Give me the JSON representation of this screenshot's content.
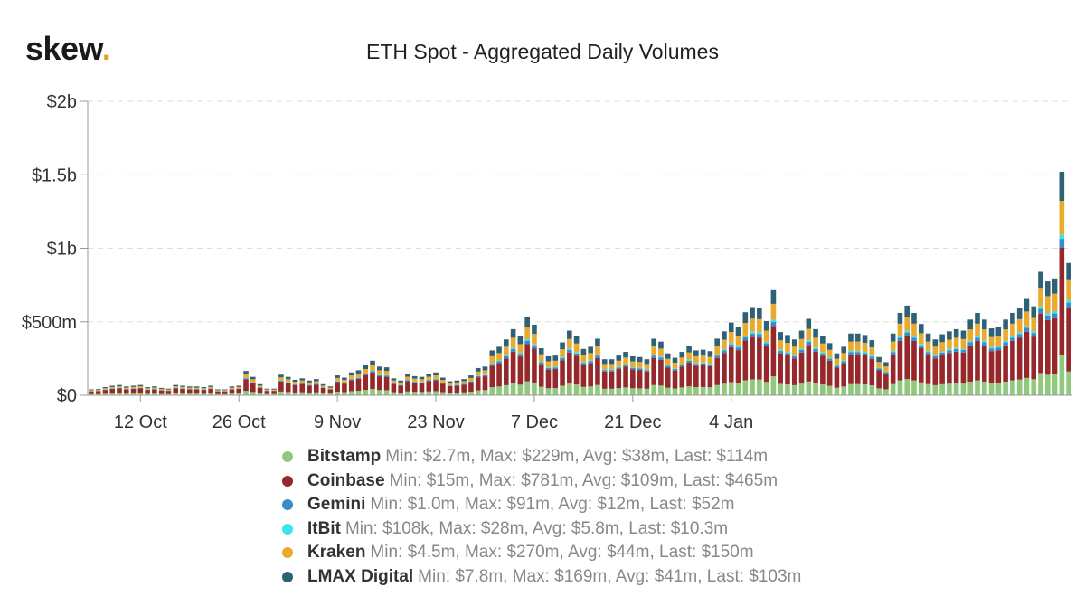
{
  "brand": {
    "name": "skew",
    "dot": "."
  },
  "chart_data": {
    "type": "bar",
    "stacked": true,
    "title": "ETH Spot - Aggregated Daily Volumes",
    "y_ticks": [
      "$0",
      "$500m",
      "$1b",
      "$1.5b",
      "$2b"
    ],
    "y_tick_values": [
      0,
      500,
      1000,
      1500,
      2000
    ],
    "ylim": [
      0,
      2000
    ],
    "y_unit": "millions USD",
    "x_ticks": [
      "12 Oct",
      "26 Oct",
      "9 Nov",
      "23 Nov",
      "7 Dec",
      "21 Dec",
      "4 Jan"
    ],
    "x_tick_indices": [
      7,
      21,
      35,
      49,
      63,
      77,
      91
    ],
    "x_range": [
      "1 Oct",
      "5 Jan"
    ],
    "grid": "horizontal-dashed",
    "legend_position": "bottom",
    "colors": {
      "Bitstamp": "#90c97c",
      "Coinbase": "#96282b",
      "Gemini": "#3a8cc6",
      "ItBit": "#3ee3e8",
      "Kraken": "#eaaa2e",
      "LMAX Digital": "#2f6176"
    },
    "totals": [
      40,
      42,
      55,
      65,
      70,
      60,
      65,
      70,
      55,
      60,
      50,
      45,
      70,
      65,
      60,
      60,
      55,
      65,
      40,
      40,
      60,
      65,
      165,
      125,
      75,
      45,
      45,
      140,
      125,
      105,
      115,
      100,
      110,
      75,
      60,
      135,
      120,
      155,
      170,
      205,
      235,
      195,
      190,
      115,
      100,
      145,
      130,
      125,
      145,
      155,
      120,
      95,
      100,
      110,
      135,
      185,
      195,
      305,
      330,
      380,
      450,
      400,
      530,
      480,
      320,
      265,
      270,
      360,
      440,
      405,
      315,
      330,
      385,
      245,
      245,
      270,
      295,
      265,
      260,
      245,
      385,
      365,
      285,
      255,
      295,
      335,
      305,
      310,
      300,
      385,
      435,
      495,
      465,
      565,
      600,
      595,
      505,
      715,
      430,
      410,
      380,
      440,
      520,
      450,
      405,
      355,
      285,
      330,
      420,
      420,
      410,
      375,
      260,
      225,
      420,
      560,
      610,
      560,
      485,
      420,
      380,
      415,
      435,
      450,
      440,
      515,
      560,
      515,
      455,
      465,
      515,
      560,
      595,
      655,
      605,
      840,
      775,
      795,
      1520,
      900
    ],
    "x": "daily bars, 97 visible days from early Oct to 5 Jan (approximate)",
    "series": [
      {
        "name": "Bitstamp",
        "min": "$2.7m",
        "max": "$229m",
        "avg": "$38m",
        "last": "$114m",
        "share": 0.18
      },
      {
        "name": "Coinbase",
        "min": "$15m",
        "max": "$781m",
        "avg": "$109m",
        "last": "$465m",
        "share": 0.48
      },
      {
        "name": "Gemini",
        "min": "$1.0m",
        "max": "$91m",
        "avg": "$12m",
        "last": "$52m",
        "share": 0.04
      },
      {
        "name": "ItBit",
        "min": "$108k",
        "max": "$28m",
        "avg": "$5.8m",
        "last": "$10.3m",
        "share": 0.02
      },
      {
        "name": "Kraken",
        "min": "$4.5m",
        "max": "$270m",
        "avg": "$44m",
        "last": "$150m",
        "share": 0.15
      },
      {
        "name": "LMAX Digital",
        "min": "$7.8m",
        "max": "$169m",
        "avg": "$41m",
        "last": "$103m",
        "share": 0.13
      }
    ]
  },
  "legend": [
    {
      "name": "Bitstamp",
      "stats": "Min: $2.7m, Max: $229m, Avg: $38m, Last: $114m"
    },
    {
      "name": "Coinbase",
      "stats": "Min: $15m, Max: $781m, Avg: $109m, Last: $465m"
    },
    {
      "name": "Gemini",
      "stats": "Min: $1.0m, Max: $91m, Avg: $12m, Last: $52m"
    },
    {
      "name": "ItBit",
      "stats": "Min: $108k, Max: $28m, Avg: $5.8m, Last: $10.3m"
    },
    {
      "name": "Kraken",
      "stats": "Min: $4.5m, Max: $270m, Avg: $44m, Last: $150m"
    },
    {
      "name": "LMAX Digital",
      "stats": "Min: $7.8m, Max: $169m, Avg: $41m, Last: $103m"
    }
  ]
}
